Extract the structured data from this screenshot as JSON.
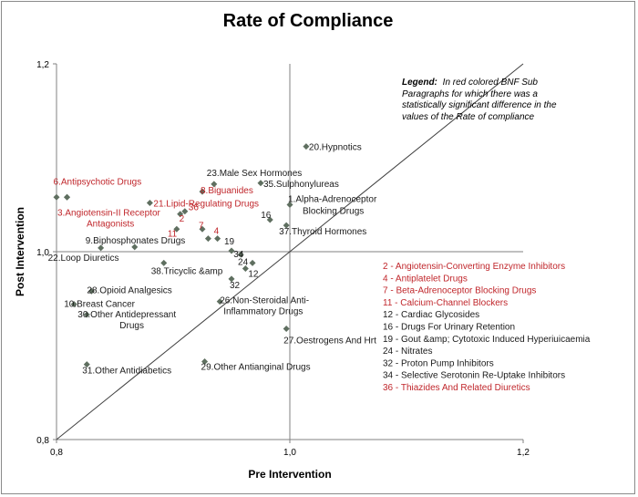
{
  "chart_data": {
    "type": "scatter",
    "title": "Rate of Compliance",
    "xlabel": "Pre Intervention",
    "ylabel": "Post Intervention",
    "xlim": [
      0.8,
      1.2
    ],
    "ylim": [
      0.8,
      1.2
    ],
    "x_ticks": [
      "0,8",
      "1,0",
      "1,2"
    ],
    "y_ticks": [
      "0,8",
      "1,0",
      "1,2"
    ],
    "reference_lines": [
      "y = x diagonal",
      "x = 1,0",
      "y = 1,0"
    ],
    "colors": {
      "red": "#c0262b",
      "black": "#1a1a1a",
      "marker": "#5f6f60"
    },
    "legend": {
      "bold": "Legend:",
      "text": "In red colored BNF Sub Paragraphs for which there was a statistically significant difference in the values of the Rate of compliance",
      "lines": [
        "Paragraphs for which there was a",
        "statistically significant difference in the",
        "values of the Rate of compliance"
      ],
      "first_line_rest": "In red colored BNF Sub"
    },
    "points": [
      {
        "x": 0.8,
        "y": 1.058,
        "label": "",
        "color": "red"
      },
      {
        "x": 0.809,
        "y": 1.058,
        "label": "6.Antipsychotic Drugs",
        "color": "red"
      },
      {
        "x": 0.809,
        "y": 1.058,
        "label": "3.Angiotensin-II Receptor Antagonists",
        "color": "red"
      },
      {
        "x": 1.014,
        "y": 1.112,
        "label": "20.Hypnotics",
        "color": "black"
      },
      {
        "x": 0.935,
        "y": 1.072,
        "label": "23.Male Sex Hormones",
        "color": "black"
      },
      {
        "x": 0.925,
        "y": 1.064,
        "label": "8.Biguanides",
        "color": "red"
      },
      {
        "x": 0.975,
        "y": 1.073,
        "label": "35.Sulphonylureas",
        "color": "black"
      },
      {
        "x": 0.88,
        "y": 1.052,
        "label": "21.Lipid-Regulating Drugs",
        "color": "red"
      },
      {
        "x": 0.91,
        "y": 1.043,
        "label": "36",
        "color": "red"
      },
      {
        "x": 0.906,
        "y": 1.04,
        "label": "2",
        "color": "red"
      },
      {
        "x": 0.903,
        "y": 1.024,
        "label": "11",
        "color": "red"
      },
      {
        "x": 0.925,
        "y": 1.024,
        "label": "7",
        "color": "red"
      },
      {
        "x": 0.938,
        "y": 1.014,
        "label": "4",
        "color": "red"
      },
      {
        "x": 0.93,
        "y": 1.014,
        "label": "",
        "color": "black"
      },
      {
        "x": 1.0,
        "y": 1.05,
        "label": "1.Alpha-Adrenoceptor Blocking Drugs",
        "color": "black"
      },
      {
        "x": 0.983,
        "y": 1.034,
        "label": "16",
        "color": "black"
      },
      {
        "x": 0.997,
        "y": 1.028,
        "label": "37.Thyroid Hormones",
        "color": "black"
      },
      {
        "x": 0.867,
        "y": 1.005,
        "label": "9.Biphosphonates Drugs",
        "color": "black"
      },
      {
        "x": 0.838,
        "y": 1.004,
        "label": "22.Loop Diuretics",
        "color": "black"
      },
      {
        "x": 0.95,
        "y": 1.001,
        "label": "19",
        "color": "black"
      },
      {
        "x": 0.958,
        "y": 0.997,
        "label": "34",
        "color": "black"
      },
      {
        "x": 0.892,
        "y": 0.988,
        "label": "38.Tricyclic &amp",
        "color": "black"
      },
      {
        "x": 0.968,
        "y": 0.988,
        "label": "24",
        "color": "black"
      },
      {
        "x": 0.962,
        "y": 0.982,
        "label": "12",
        "color": "black"
      },
      {
        "x": 0.95,
        "y": 0.971,
        "label": "32",
        "color": "black"
      },
      {
        "x": 0.83,
        "y": 0.958,
        "label": "28.Opioid Analgesics",
        "color": "black"
      },
      {
        "x": 0.815,
        "y": 0.944,
        "label": "10.Breast Cancer",
        "color": "black"
      },
      {
        "x": 0.826,
        "y": 0.933,
        "label": "30.Other Antidepressant Drugs",
        "color": "black"
      },
      {
        "x": 0.94,
        "y": 0.947,
        "label": "26.Non-Steroidal Anti-Inflammatory Drugs",
        "color": "black"
      },
      {
        "x": 0.997,
        "y": 0.918,
        "label": "27.Oestrogens And Hrt",
        "color": "black"
      },
      {
        "x": 0.826,
        "y": 0.88,
        "label": "31.Other Antidiabetics",
        "color": "black"
      },
      {
        "x": 0.927,
        "y": 0.883,
        "label": "29.Other Antianginal Drugs",
        "color": "black"
      }
    ],
    "key_list": [
      {
        "text": "2 - Angiotensin-Converting Enzyme Inhibitors",
        "color": "red"
      },
      {
        "text": "4 - Antiplatelet Drugs",
        "color": "red"
      },
      {
        "text": "7 - Beta-Adrenoceptor Blocking Drugs",
        "color": "red"
      },
      {
        "text": "11 - Calcium-Channel Blockers",
        "color": "red"
      },
      {
        "text": "12 - Cardiac Glycosides",
        "color": "black"
      },
      {
        "text": "16 - Drugs For Urinary Retention",
        "color": "black"
      },
      {
        "text": "19 - Gout &amp; Cytotoxic Induced Hyperiuicaemia",
        "color": "black"
      },
      {
        "text": "24 - Nitrates",
        "color": "black"
      },
      {
        "text": "32 - Proton Pump Inhibitors",
        "color": "black"
      },
      {
        "text": "34 - Selective Serotonin Re-Uptake Inhibitors",
        "color": "black"
      },
      {
        "text": "36 - Thiazides And Related Diuretics",
        "color": "red"
      }
    ]
  }
}
